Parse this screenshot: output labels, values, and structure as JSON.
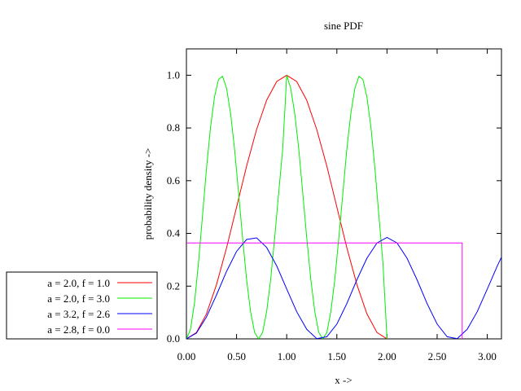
{
  "chart_data": {
    "type": "line",
    "title": "sine PDF",
    "xlabel": "x ->",
    "ylabel": "probability density ->",
    "xlim": [
      0,
      3.1416
    ],
    "ylim": [
      0,
      1.1
    ],
    "grid": false,
    "legend_placement": "bottom-left",
    "x_ticks": [
      0,
      0.5,
      1.0,
      1.5,
      2.0,
      2.5,
      3.0
    ],
    "x_tick_labels": [
      "0.00",
      "0.50",
      "1.00",
      "1.50",
      "2.00",
      "2.50",
      "3.00"
    ],
    "y_ticks": [
      0,
      0.2,
      0.4,
      0.6,
      0.8,
      1.0
    ],
    "y_tick_labels": [
      "0.0",
      "0.2",
      "0.4",
      "0.6",
      "0.8",
      "1.0"
    ],
    "series": [
      {
        "name": "a = 2.0, f = 1.0",
        "color": "#ff0000",
        "x": [
          0,
          0.1,
          0.2,
          0.3,
          0.4,
          0.5,
          0.6,
          0.7,
          0.8,
          0.9,
          1.0,
          1.1,
          1.2,
          1.3,
          1.4,
          1.5,
          1.6,
          1.7,
          1.8,
          1.9,
          2.0
        ],
        "y": [
          0,
          0.024,
          0.095,
          0.206,
          0.345,
          0.5,
          0.655,
          0.794,
          0.905,
          0.976,
          1.0,
          0.976,
          0.905,
          0.794,
          0.655,
          0.5,
          0.345,
          0.206,
          0.095,
          0.024,
          0
        ]
      },
      {
        "name": "a = 2.0, f = 3.0",
        "color": "#00ee00",
        "x": [
          0,
          0.04,
          0.08,
          0.12,
          0.16,
          0.2,
          0.24,
          0.28,
          0.32,
          0.36,
          0.4,
          0.44,
          0.48,
          0.52,
          0.56,
          0.6,
          0.64,
          0.68,
          0.72,
          0.76,
          0.8,
          0.84,
          0.88,
          0.92,
          0.96,
          1.0,
          1.04,
          1.08,
          1.12,
          1.16,
          1.2,
          1.24,
          1.28,
          1.32,
          1.36,
          1.4,
          1.44,
          1.48,
          1.52,
          1.56,
          1.6,
          1.64,
          1.68,
          1.72,
          1.76,
          1.8,
          1.84,
          1.88,
          1.92,
          1.96,
          2.0
        ],
        "y": [
          0,
          0.035,
          0.136,
          0.287,
          0.465,
          0.645,
          0.802,
          0.918,
          0.984,
          0.996,
          0.951,
          0.856,
          0.721,
          0.553,
          0.383,
          0.226,
          0.103,
          0.024,
          0,
          0.024,
          0.103,
          0.226,
          0.383,
          0.553,
          0.721,
          1.0,
          0.951,
          0.856,
          0.721,
          0.553,
          0.383,
          0.226,
          0.103,
          0.024,
          0,
          0.024,
          0.103,
          0.226,
          0.383,
          0.553,
          0.721,
          0.856,
          0.951,
          0.996,
          0.984,
          0.918,
          0.802,
          0.645,
          0.465,
          0.287,
          0
        ]
      },
      {
        "name": "a = 3.2, f = 2.6",
        "color": "#0000ff",
        "x": [
          0,
          0.1,
          0.2,
          0.3,
          0.4,
          0.5,
          0.6,
          0.7,
          0.8,
          0.9,
          1.0,
          1.1,
          1.2,
          1.3,
          1.4,
          1.5,
          1.6,
          1.7,
          1.8,
          1.9,
          2.0,
          2.1,
          2.2,
          2.3,
          2.4,
          2.5,
          2.6,
          2.7,
          2.8,
          2.9,
          3.0,
          3.1,
          3.1416
        ],
        "y": [
          0,
          0.022,
          0.083,
          0.167,
          0.256,
          0.332,
          0.377,
          0.383,
          0.347,
          0.277,
          0.189,
          0.103,
          0.036,
          0.001,
          0.008,
          0.056,
          0.134,
          0.224,
          0.306,
          0.364,
          0.385,
          0.364,
          0.306,
          0.224,
          0.134,
          0.056,
          0.008,
          0.001,
          0.036,
          0.103,
          0.189,
          0.277,
          0.31
        ]
      },
      {
        "name": "a = 2.8, f = 0.0",
        "color": "#ff00ff",
        "x": [
          0,
          2.75,
          2.75
        ],
        "y": [
          0.364,
          0.364,
          0
        ]
      }
    ]
  }
}
